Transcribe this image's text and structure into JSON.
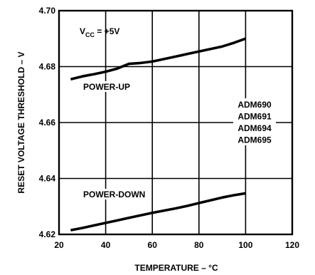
{
  "chart_data": {
    "type": "line",
    "title": "",
    "xlabel": "TEMPERATURE – °C",
    "ylabel": "RESET VOLTAGE THRESHOLD – V",
    "xlim": [
      20,
      120
    ],
    "ylim": [
      4.62,
      4.7
    ],
    "xticks": [
      20,
      40,
      60,
      80,
      100,
      120
    ],
    "yticks": [
      4.62,
      4.64,
      4.66,
      4.68,
      4.7
    ],
    "xtick_labels": [
      "20",
      "40",
      "60",
      "80",
      "100",
      "120"
    ],
    "ytick_labels": [
      "4.62",
      "4.64",
      "4.66",
      "4.68",
      "4.70"
    ],
    "grid": true,
    "condition": {
      "prefix": "V",
      "subscript": "CC",
      "suffix": " = +5V"
    },
    "device_list": [
      "ADM690",
      "ADM691",
      "ADM694",
      "ADM695"
    ],
    "series": [
      {
        "name": "POWER-UP",
        "x": [
          25,
          30,
          35,
          40,
          45,
          50,
          55,
          60,
          65,
          70,
          75,
          80,
          85,
          90,
          95,
          100
        ],
        "y": [
          4.6755,
          4.6765,
          4.6773,
          4.6782,
          4.6793,
          4.681,
          4.6813,
          4.6818,
          4.6827,
          4.6836,
          4.6845,
          4.6854,
          4.6863,
          4.6872,
          4.6885,
          4.69
        ]
      },
      {
        "name": "POWER-DOWN",
        "x": [
          25,
          30,
          35,
          40,
          45,
          50,
          55,
          60,
          65,
          70,
          75,
          80,
          85,
          90,
          95,
          100
        ],
        "y": [
          4.6215,
          4.6223,
          4.6232,
          4.6241,
          4.625,
          4.6259,
          4.6268,
          4.6277,
          4.6285,
          4.6293,
          4.6302,
          4.6312,
          4.6322,
          4.6332,
          4.634,
          4.6347
        ]
      }
    ]
  }
}
